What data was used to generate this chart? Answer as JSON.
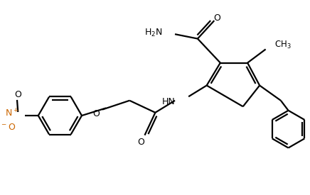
{
  "bg_color": "#ffffff",
  "bond_color": "#000000",
  "nitro_color": "#cc6600",
  "line_width": 1.6,
  "figsize": [
    4.36,
    2.75
  ],
  "dpi": 100,
  "xlim": [
    0,
    10
  ],
  "ylim": [
    0,
    6.3
  ]
}
